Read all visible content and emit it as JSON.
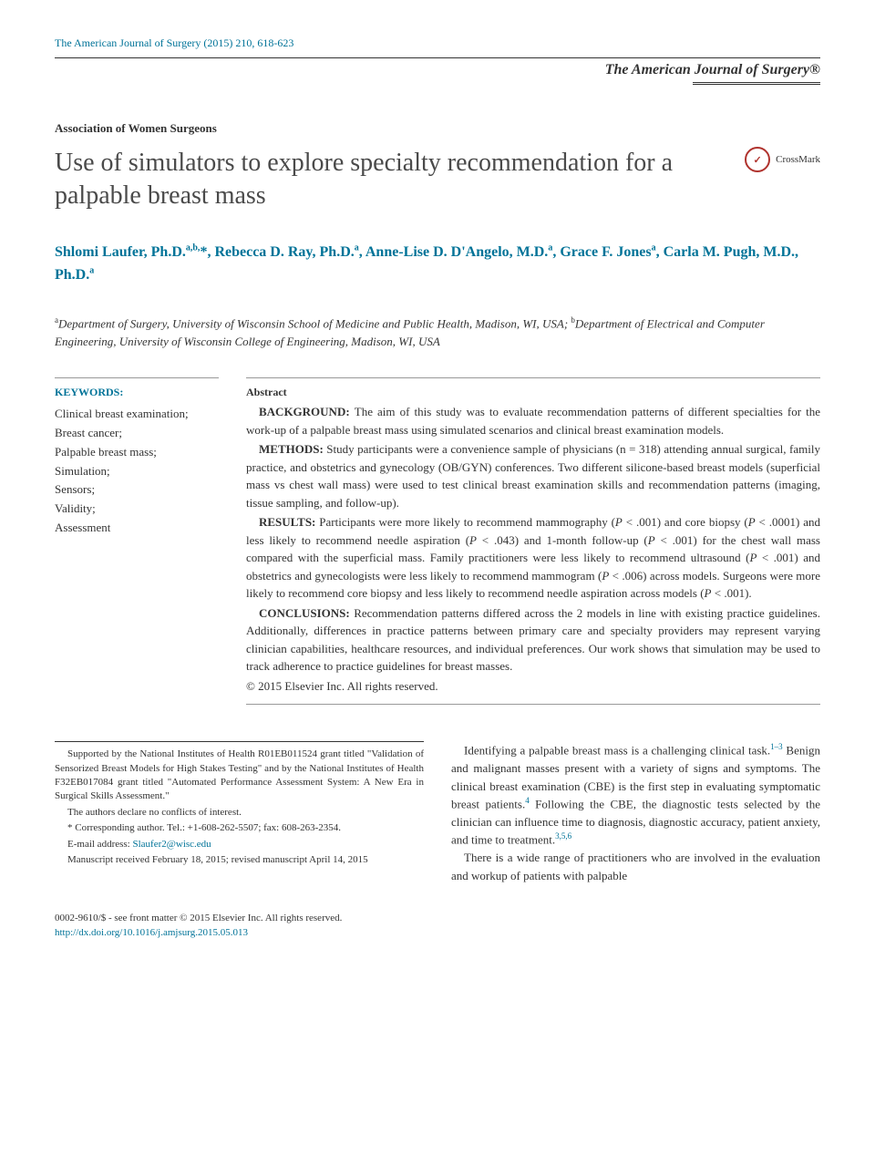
{
  "header": {
    "citation": "The American Journal of Surgery (2015) 210, 618-623",
    "journal_name": "The American Journal of Surgery®"
  },
  "section_label": "Association of Women Surgeons",
  "title": "Use of simulators to explore specialty recommendation for a palpable breast mass",
  "crossmark_label": "CrossMark",
  "authors_html": "Shlomi Laufer, Ph.D.<sup>a,b,</sup>*, Rebecca D. Ray, Ph.D.<sup>a</sup>, Anne-Lise D. D'Angelo, M.D.<sup>a</sup>, Grace F. Jones<sup>a</sup>, Carla M. Pugh, M.D., Ph.D.<sup>a</sup>",
  "affiliations_html": "<sup>a</sup>Department of Surgery, University of Wisconsin School of Medicine and Public Health, Madison, WI, USA; <sup>b</sup>Department of Electrical and Computer Engineering, University of Wisconsin College of Engineering, Madison, WI, USA",
  "keywords": {
    "heading": "KEYWORDS:",
    "items": [
      "Clinical breast examination;",
      "Breast cancer;",
      "Palpable breast mass;",
      "Simulation;",
      "Sensors;",
      "Validity;",
      "Assessment"
    ]
  },
  "abstract": {
    "heading": "Abstract",
    "sections": [
      {
        "label": "BACKGROUND:",
        "text": "The aim of this study was to evaluate recommendation patterns of different specialties for the work-up of a palpable breast mass using simulated scenarios and clinical breast examination models."
      },
      {
        "label": "METHODS:",
        "text": "Study participants were a convenience sample of physicians (n = 318) attending annual surgical, family practice, and obstetrics and gynecology (OB/GYN) conferences. Two different silicone-based breast models (superficial mass vs chest wall mass) were used to test clinical breast examination skills and recommendation patterns (imaging, tissue sampling, and follow-up)."
      },
      {
        "label": "RESULTS:",
        "text": "Participants were more likely to recommend mammography (P < .001) and core biopsy (P < .0001) and less likely to recommend needle aspiration (P < .043) and 1-month follow-up (P < .001) for the chest wall mass compared with the superficial mass. Family practitioners were less likely to recommend ultrasound (P < .001) and obstetrics and gynecologists were less likely to recommend mammogram (P < .006) across models. Surgeons were more likely to recommend core biopsy and less likely to recommend needle aspiration across models (P < .001)."
      },
      {
        "label": "CONCLUSIONS:",
        "text": "Recommendation patterns differed across the 2 models in line with existing practice guidelines. Additionally, differences in practice patterns between primary care and specialty providers may represent varying clinician capabilities, healthcare resources, and individual preferences. Our work shows that simulation may be used to track adherence to practice guidelines for breast masses."
      }
    ],
    "copyright": "© 2015 Elsevier Inc. All rights reserved."
  },
  "footnotes": {
    "funding": "Supported by the National Institutes of Health R01EB011524 grant titled \"Validation of Sensorized Breast Models for High Stakes Testing\" and by the National Institutes of Health F32EB017084 grant titled \"Automated Performance Assessment System: A New Era in Surgical Skills Assessment.\"",
    "conflicts": "The authors declare no conflicts of interest.",
    "corresponding": "* Corresponding author. Tel.: +1-608-262-5507; fax: 608-263-2354.",
    "email_label": "E-mail address: ",
    "email": "Slaufer2@wisc.edu",
    "received": "Manuscript received February 18, 2015; revised manuscript April 14, 2015"
  },
  "body": {
    "para1_html": "Identifying a palpable breast mass is a challenging clinical task.<sup class='ref-sup'>1–3</sup> Benign and malignant masses present with a variety of signs and symptoms. The clinical breast examination (CBE) is the first step in evaluating symptomatic breast patients.<sup class='ref-sup'>4</sup> Following the CBE, the diagnostic tests selected by the clinician can influence time to diagnosis, diagnostic accuracy, patient anxiety, and time to treatment.<sup class='ref-sup'>3,5,6</sup>",
    "para2": "There is a wide range of practitioners who are involved in the evaluation and workup of patients with palpable"
  },
  "footer": {
    "issn": "0002-9610/$ - see front matter © 2015 Elsevier Inc. All rights reserved.",
    "doi": "http://dx.doi.org/10.1016/j.amjsurg.2015.05.013"
  },
  "colors": {
    "link": "#007398",
    "text": "#333333",
    "title": "#4a4a4a",
    "crossmark": "#b0332e"
  }
}
